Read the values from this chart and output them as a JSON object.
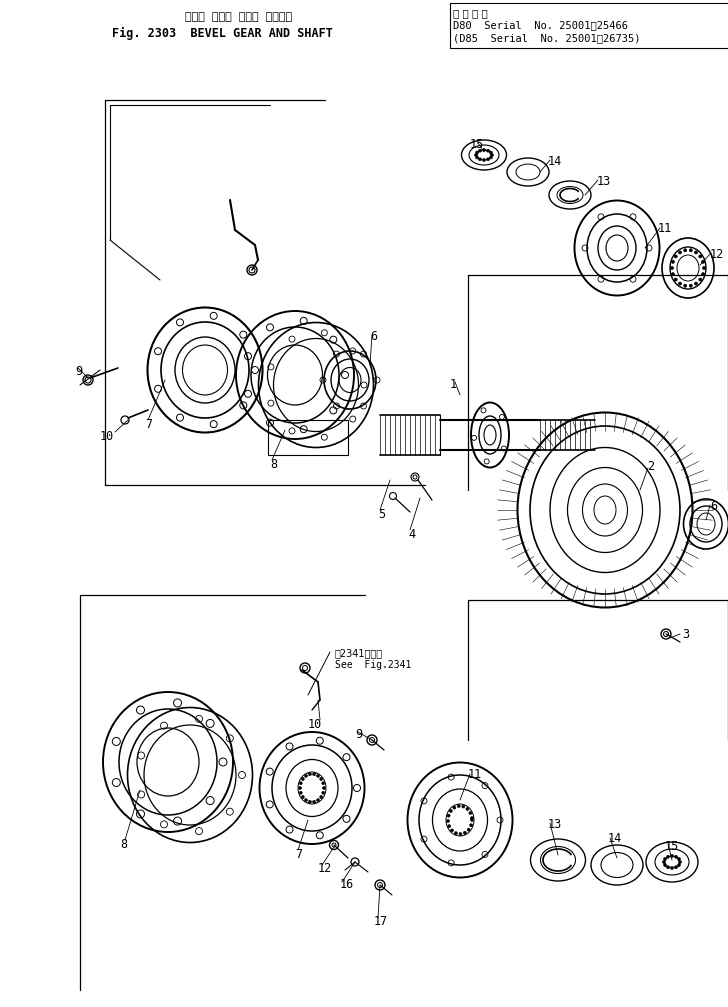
{
  "title_japanese": "ベベル  ギヤー  および  シャフト",
  "title_english": "Fig. 2303  BEVEL GEAR AND SHAFT",
  "serial_line1": "D80  Serial  No. 25001～25466",
  "serial_line2": "(D85  Serial  No. 25001～26735)",
  "serial_header": "適 用 号 機",
  "note_japanese": "第2341図参照",
  "note_english": "See  Fig.2341",
  "bg_color": "#ffffff",
  "line_color": "#000000",
  "fig_width": 7.28,
  "fig_height": 10.07
}
